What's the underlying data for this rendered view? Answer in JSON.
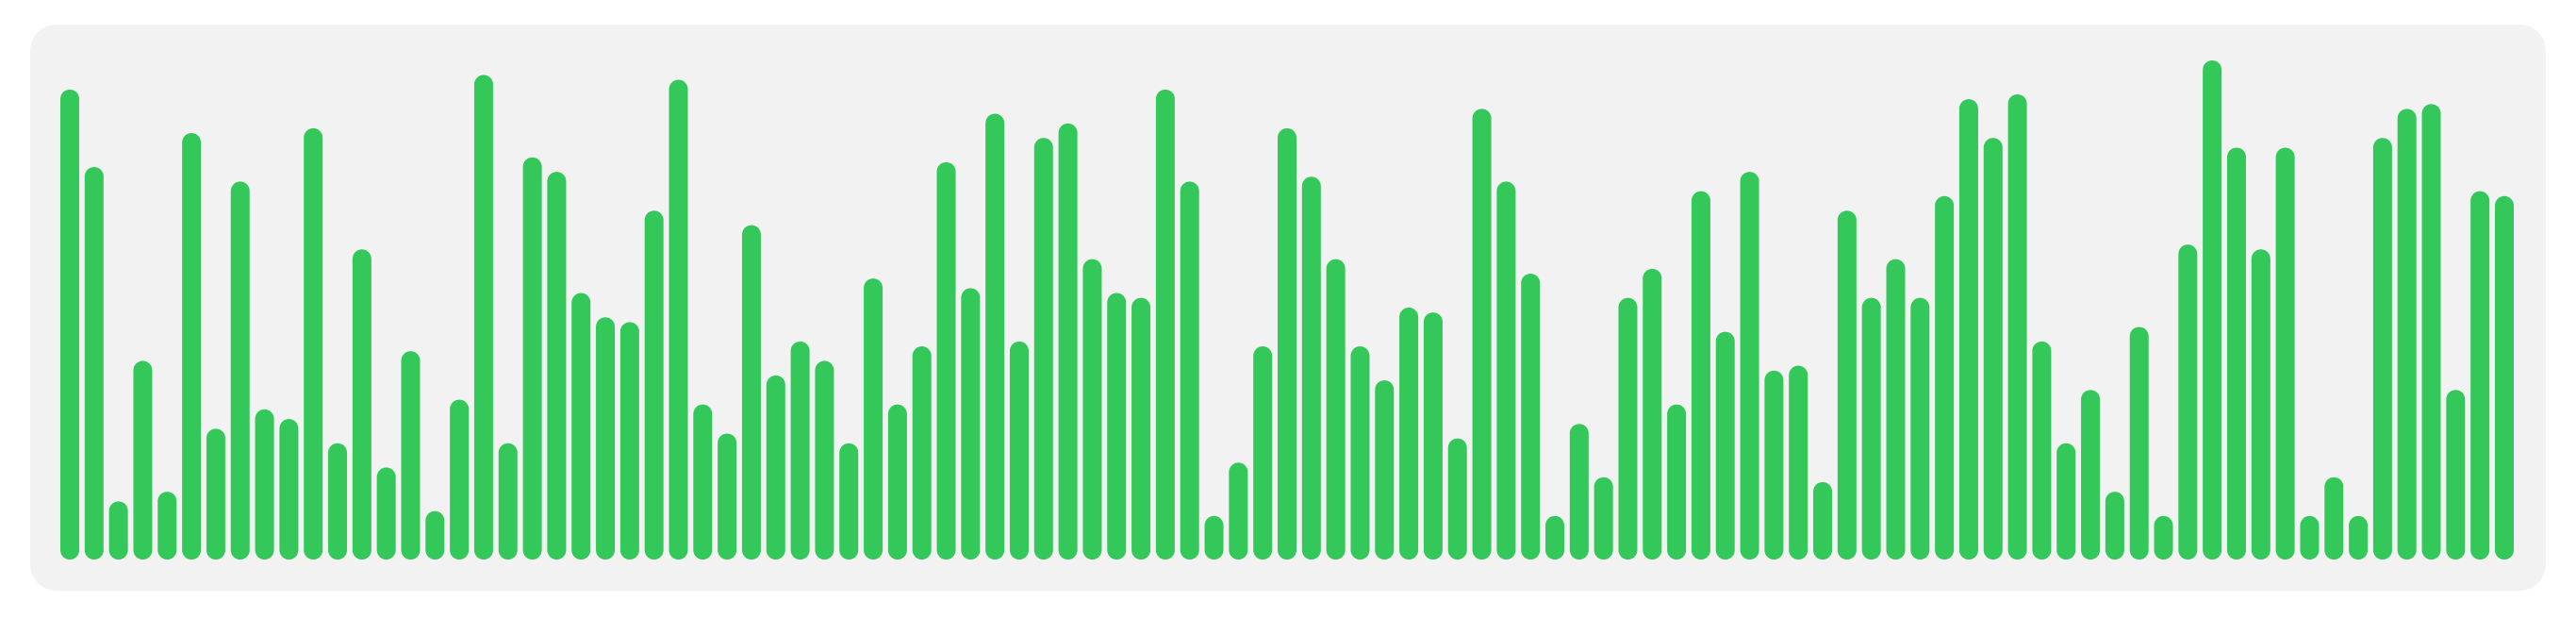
{
  "chart_data": {
    "type": "bar",
    "values": [
      0.97,
      0.81,
      0.12,
      0.41,
      0.14,
      0.88,
      0.27,
      0.78,
      0.31,
      0.29,
      0.89,
      0.24,
      0.64,
      0.19,
      0.43,
      0.1,
      0.33,
      1.0,
      0.24,
      0.83,
      0.8,
      0.55,
      0.5,
      0.49,
      0.72,
      0.99,
      0.32,
      0.26,
      0.69,
      0.38,
      0.45,
      0.41,
      0.24,
      0.58,
      0.32,
      0.44,
      0.82,
      0.56,
      0.92,
      0.45,
      0.87,
      0.9,
      0.62,
      0.55,
      0.54,
      0.97,
      0.78,
      0.09,
      0.2,
      0.44,
      0.89,
      0.79,
      0.62,
      0.44,
      0.37,
      0.52,
      0.51,
      0.25,
      0.93,
      0.78,
      0.59,
      0.09,
      0.28,
      0.17,
      0.54,
      0.6,
      0.32,
      0.76,
      0.47,
      0.8,
      0.39,
      0.4,
      0.16,
      0.72,
      0.54,
      0.62,
      0.54,
      0.75,
      0.95,
      0.87,
      0.96,
      0.45,
      0.24,
      0.35,
      0.14,
      0.48,
      0.09,
      0.65,
      1.03,
      0.85,
      0.64,
      0.85,
      0.09,
      0.17,
      0.09,
      0.87,
      0.93,
      0.94,
      0.35,
      0.76,
      0.75
    ],
    "ylim": [
      0,
      1.03
    ],
    "grid": false,
    "colors": {
      "bar": "#34c759",
      "panel": "#f2f2f2",
      "background": "#ffffff"
    }
  }
}
